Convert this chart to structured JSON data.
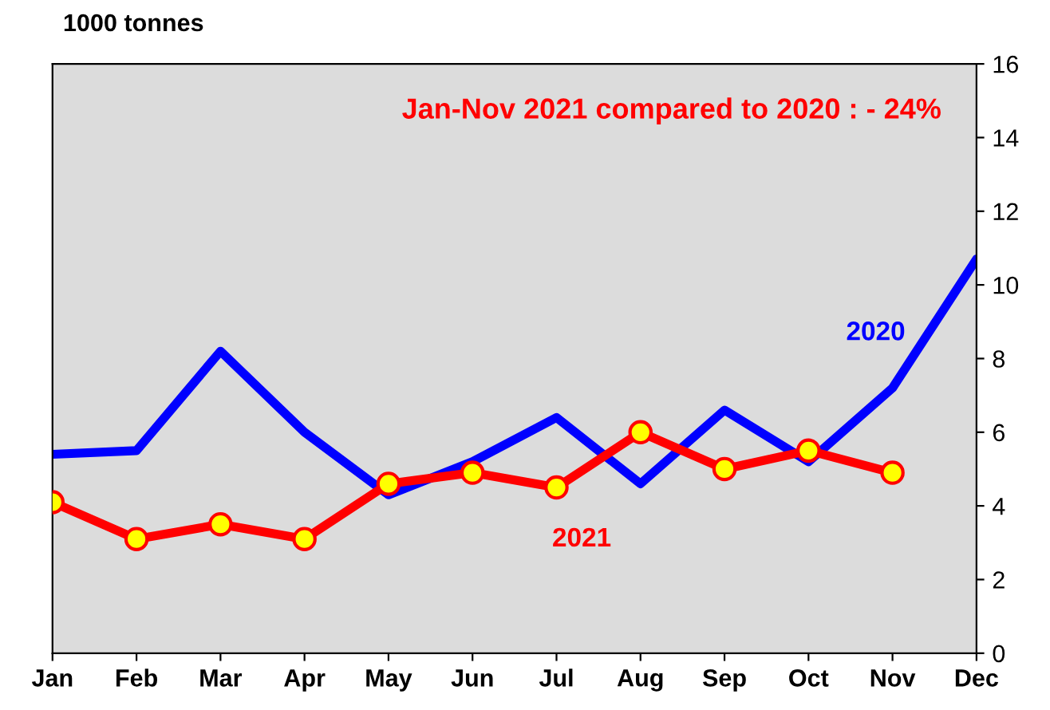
{
  "chart_data": {
    "type": "line",
    "ylabel": "1000 tonnes",
    "categories": [
      "Jan",
      "Feb",
      "Mar",
      "Apr",
      "May",
      "Jun",
      "Jul",
      "Aug",
      "Sep",
      "Oct",
      "Nov",
      "Dec"
    ],
    "series": [
      {
        "name": "2020",
        "color": "#0000ff",
        "values": [
          5.4,
          5.5,
          8.2,
          6.0,
          4.3,
          5.2,
          6.4,
          4.6,
          6.6,
          5.2,
          7.2,
          10.7
        ],
        "marker": "none"
      },
      {
        "name": "2021",
        "color": "#ff0000",
        "values": [
          4.1,
          3.1,
          3.5,
          3.1,
          4.6,
          4.9,
          4.5,
          6.0,
          5.0,
          5.5,
          4.9,
          null
        ],
        "marker": "circle"
      }
    ],
    "ylim": [
      0,
      16
    ],
    "yticks": [
      0,
      2,
      4,
      6,
      8,
      10,
      12,
      14,
      16
    ],
    "grid": false,
    "legend": false,
    "annotations": [
      "Jan-Nov 2021 compared to 2020 : - 24%"
    ]
  }
}
